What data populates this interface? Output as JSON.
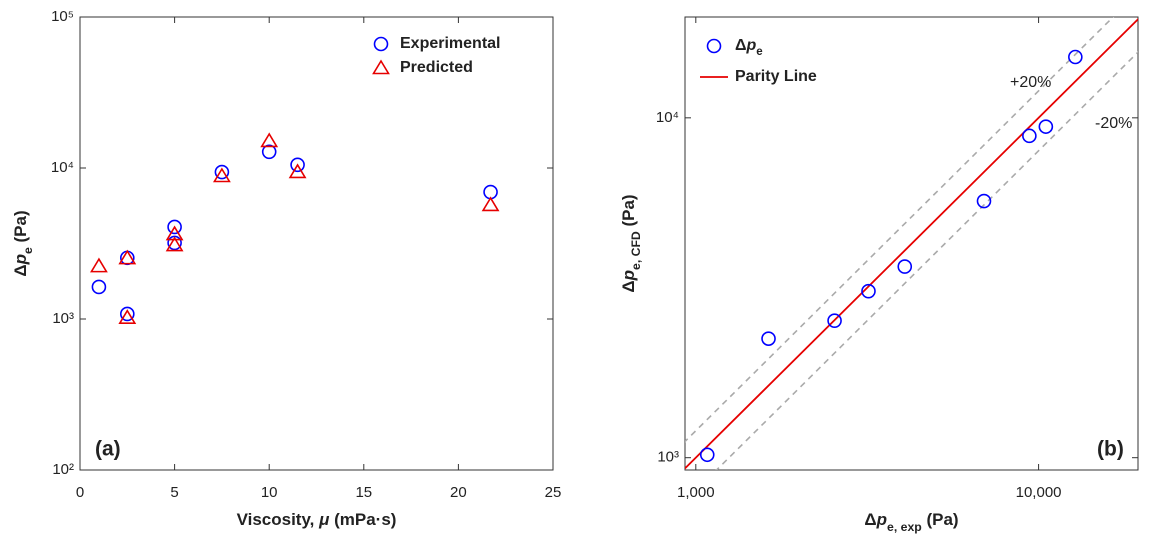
{
  "chart_data": [
    {
      "type": "scatter",
      "label": "(a)",
      "xlabel": [
        {
          "text": "Viscosity, "
        },
        {
          "text": "μ",
          "italic": true
        },
        {
          "text": " (mPa·s)"
        }
      ],
      "ylabel": [
        {
          "text": "Δ"
        },
        {
          "text": "p",
          "italic": true
        },
        {
          "text": "e",
          "sub": true
        },
        {
          "text": " (Pa)"
        }
      ],
      "xlim": [
        0,
        25
      ],
      "xticks": [
        0,
        5,
        10,
        15,
        20,
        25
      ],
      "ylim": [
        100,
        100000
      ],
      "yscale": "log",
      "yticks": [
        {
          "value": 100,
          "label": "10²"
        },
        {
          "value": 1000,
          "label": "10³"
        },
        {
          "value": 10000,
          "label": "10⁴"
        },
        {
          "value": 100000,
          "label": "10⁵"
        }
      ],
      "legend": "upper right",
      "x": [
        1,
        2.5,
        2.5,
        5,
        5,
        7.5,
        10,
        11.5,
        21.7
      ],
      "series": [
        {
          "name": [
            {
              "text": "Experimental"
            }
          ],
          "color": "#0000ff",
          "marker": "circle",
          "values": [
            1630,
            2540,
            1080,
            4070,
            3190,
            9400,
            12800,
            10500,
            6930
          ]
        },
        {
          "name": [
            {
              "text": "Predicted"
            }
          ],
          "color": "#e60000",
          "marker": "triangle",
          "values": [
            2240,
            2530,
            1020,
            3650,
            3090,
            8850,
            15100,
            9420,
            5690
          ]
        }
      ]
    },
    {
      "type": "scatter",
      "label": "(b)",
      "xlabel": [
        {
          "text": "Δ"
        },
        {
          "text": "p",
          "italic": true
        },
        {
          "text": "e, exp",
          "sub": true
        },
        {
          "text": " (Pa)"
        }
      ],
      "ylabel": [
        {
          "text": "Δ"
        },
        {
          "text": "p",
          "italic": true
        },
        {
          "text": "e, CFD",
          "sub": true
        },
        {
          "text": " (Pa)"
        }
      ],
      "xscale": "log",
      "yscale": "log",
      "xlim": [
        930,
        19500
      ],
      "xticks": [
        {
          "value": 1000,
          "label": "1,000"
        },
        {
          "value": 10000,
          "label": "10,000"
        }
      ],
      "ylim": [
        920,
        19800
      ],
      "yticks": [
        {
          "value": 1000,
          "label": "10³"
        },
        {
          "value": 10000,
          "label": "10⁴"
        }
      ],
      "legend": "upper left",
      "series": [
        {
          "name": [
            {
              "text": "Δ"
            },
            {
              "text": "p",
              "italic": true
            },
            {
              "text": "e",
              "sub": true
            }
          ],
          "color": "#0000ff",
          "marker": "circle",
          "x": [
            1080,
            1630,
            2540,
            3190,
            4070,
            6930,
            9400,
            10500,
            12800
          ],
          "values": [
            1020,
            2240,
            2530,
            3090,
            3650,
            5690,
            8850,
            9420,
            15100
          ]
        }
      ],
      "parity_line": {
        "name": "Parity Line",
        "color": "#e60000"
      },
      "tolerance_lines": [
        {
          "value": 20,
          "label": "+20%"
        },
        {
          "value": -20,
          "label": "-20%"
        }
      ]
    }
  ]
}
